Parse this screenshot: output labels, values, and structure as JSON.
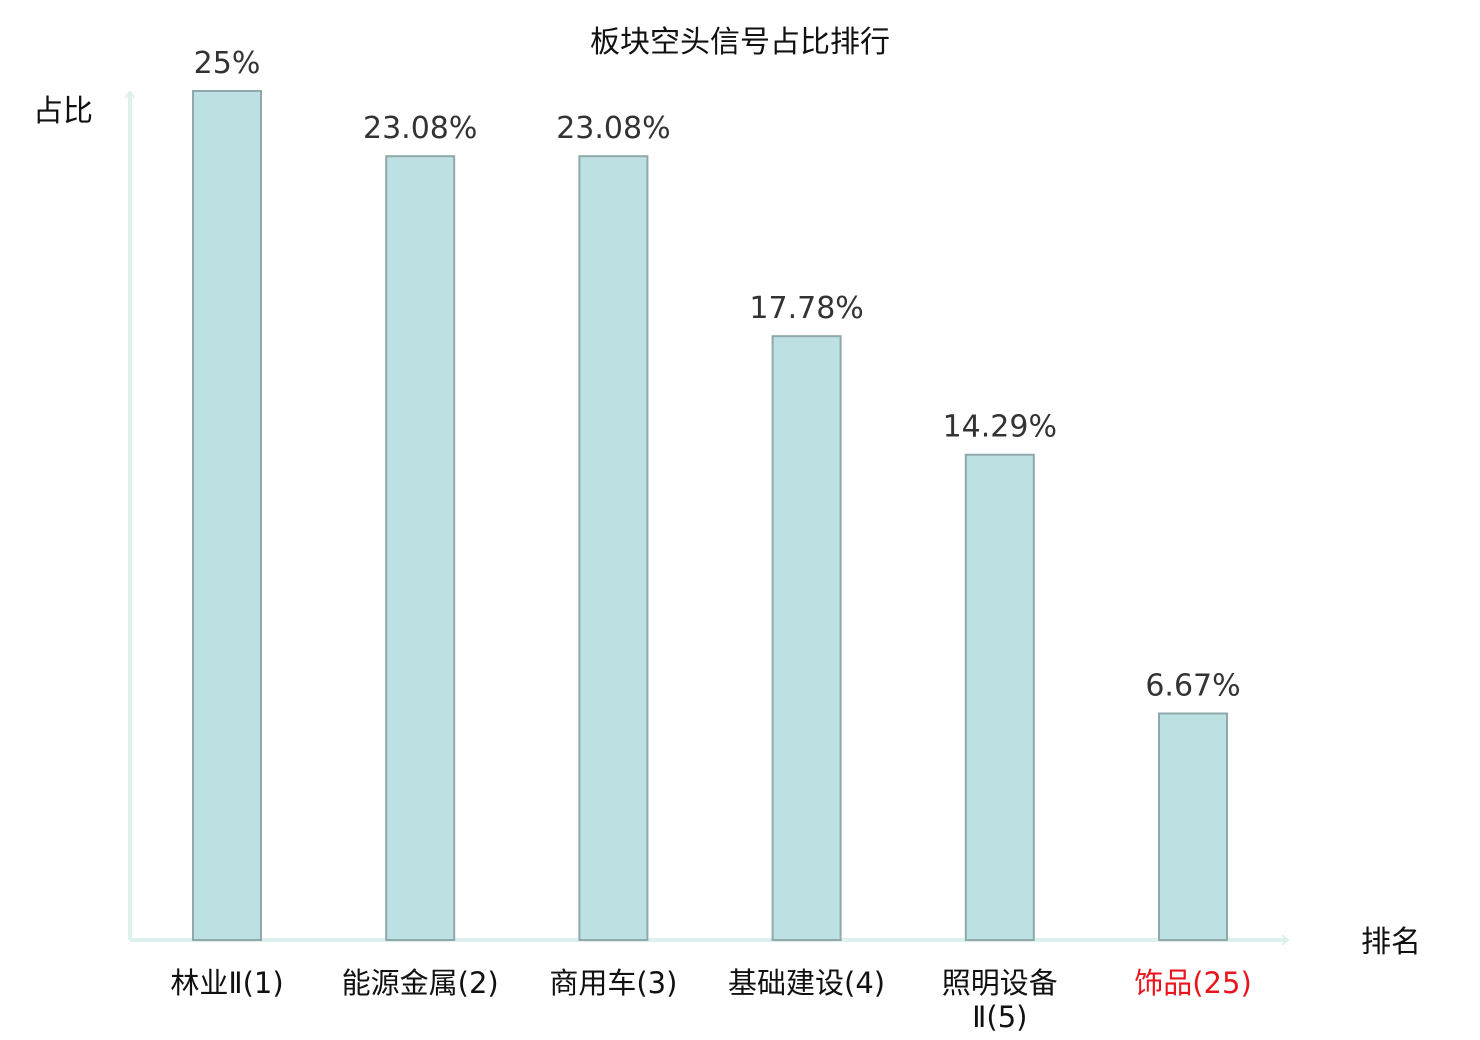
{
  "chart_data": {
    "type": "bar",
    "title": "板块空头信号占比排行",
    "xlabel": "排名",
    "ylabel": "占比",
    "categories": [
      {
        "name": "林业Ⅱ",
        "rank": "(1)"
      },
      {
        "name": "能源金属",
        "rank": "(2)"
      },
      {
        "name": "商用车",
        "rank": "(3)"
      },
      {
        "name": "基础建设",
        "rank": "(4)"
      },
      {
        "name": "照明设备Ⅱ",
        "rank": "(5)"
      },
      {
        "name": "饰品",
        "rank": "(25)"
      }
    ],
    "values": [
      25,
      23.08,
      23.08,
      17.78,
      14.29,
      6.67
    ],
    "value_labels": [
      "25%",
      "23.08%",
      "23.08%",
      "17.78%",
      "14.29%",
      "6.67%"
    ],
    "ylim": [
      0,
      25
    ],
    "grid": false,
    "legend": "none"
  },
  "colors": {
    "bar_fill": "#bde0e3",
    "bar_stroke": "#8fa8aa",
    "axis": "#dcf0ee",
    "highlight": "#e8161c",
    "text": "#111111"
  },
  "highlight_index": 5
}
